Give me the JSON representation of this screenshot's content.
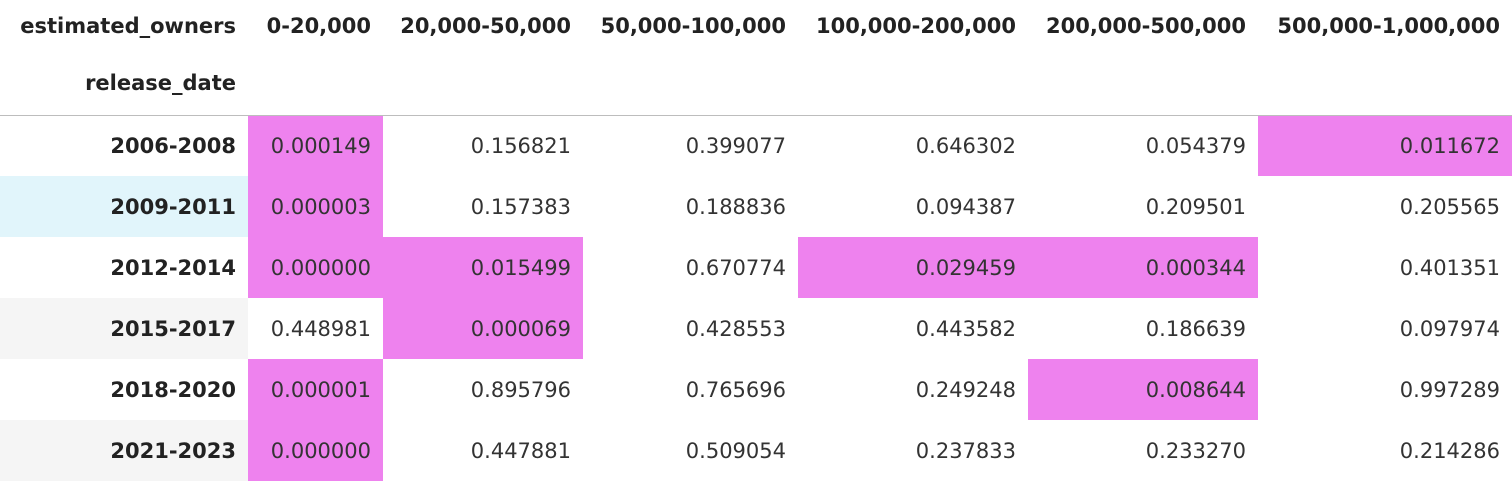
{
  "table": {
    "columns_name": "estimated_owners",
    "index_name": "release_date",
    "columns": [
      "0-20,000",
      "20,000-50,000",
      "50,000-100,000",
      "100,000-200,000",
      "200,000-500,000",
      "500,000-1,000,000"
    ],
    "highlight_color": "#ee82ee",
    "index_hover_color": "#e1f5fb",
    "rows": [
      {
        "label": "2006-2008",
        "values": [
          "0.000149",
          "0.156821",
          "0.399077",
          "0.646302",
          "0.054379",
          "0.011672"
        ],
        "highlighted": [
          true,
          false,
          false,
          false,
          false,
          true
        ]
      },
      {
        "label": "2009-2011",
        "values": [
          "0.000003",
          "0.157383",
          "0.188836",
          "0.094387",
          "0.209501",
          "0.205565"
        ],
        "highlighted": [
          true,
          false,
          false,
          false,
          false,
          false
        ]
      },
      {
        "label": "2012-2014",
        "values": [
          "0.000000",
          "0.015499",
          "0.670774",
          "0.029459",
          "0.000344",
          "0.401351"
        ],
        "highlighted": [
          true,
          true,
          false,
          true,
          true,
          false
        ]
      },
      {
        "label": "2015-2017",
        "values": [
          "0.448981",
          "0.000069",
          "0.428553",
          "0.443582",
          "0.186639",
          "0.097974"
        ],
        "highlighted": [
          false,
          true,
          false,
          false,
          false,
          false
        ]
      },
      {
        "label": "2018-2020",
        "values": [
          "0.000001",
          "0.895796",
          "0.765696",
          "0.249248",
          "0.008644",
          "0.997289"
        ],
        "highlighted": [
          true,
          false,
          false,
          false,
          true,
          false
        ]
      },
      {
        "label": "2021-2023",
        "values": [
          "0.000000",
          "0.447881",
          "0.509054",
          "0.237833",
          "0.233270",
          "0.214286"
        ],
        "highlighted": [
          true,
          false,
          false,
          false,
          false,
          false
        ]
      }
    ]
  }
}
